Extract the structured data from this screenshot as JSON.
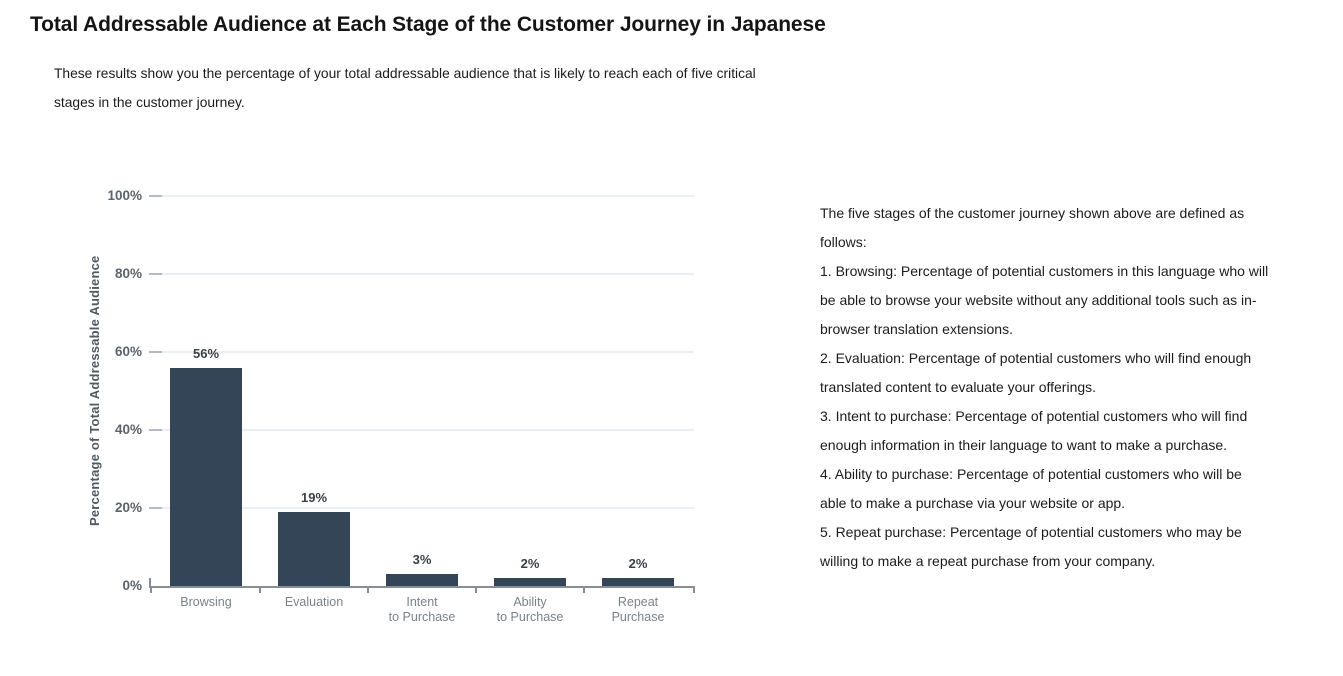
{
  "title": "Total Addressable Audience at Each Stage of the Customer Journey in Japanese",
  "subtitle": {
    "lines": [
      "These results show you the percentage of your total addressable audience that is likely to reach each of five critical",
      "stages in the customer journey."
    ]
  },
  "chart_data": {
    "type": "bar",
    "categories": [
      "Browsing",
      "Evaluation",
      "Intent to Purchase",
      "Ability to Purchase",
      "Repeat Purchase"
    ],
    "category_lines": [
      [
        "Browsing"
      ],
      [
        "Evaluation"
      ],
      [
        "Intent",
        "to Purchase"
      ],
      [
        "Ability",
        "to Purchase"
      ],
      [
        "Repeat",
        "Purchase"
      ]
    ],
    "values": [
      56,
      19,
      3,
      2,
      2
    ],
    "value_labels": [
      "56%",
      "19%",
      "3%",
      "2%",
      "2%"
    ],
    "title": "",
    "xlabel": "",
    "ylabel": "Percentage of Total Addressable Audience",
    "ylim": [
      0,
      100
    ],
    "yticks": [
      "100%",
      "80%",
      "60%",
      "40%",
      "20%",
      "0%"
    ],
    "grid": "horizontal-only",
    "legend": "none",
    "bar_color": "#344558",
    "gridline_color": "#EAEEF5",
    "axis_color": "#878E96"
  },
  "definitions": {
    "lines": [
      "The five stages of the customer journey shown above are defined as",
      "follows:",
      "1. Browsing: Percentage of potential customers in this language who will",
      "be able to browse your website without any additional tools such as in-",
      "browser translation extensions.",
      "2. Evaluation: Percentage of potential customers who will find enough",
      "translated content to evaluate your offerings.",
      "3. Intent to purchase: Percentage of potential customers who will find",
      "enough information in their language to want to make a purchase.",
      "4. Ability to purchase: Percentage of potential customers who will be",
      "able to make a purchase via your website or app.",
      "5. Repeat purchase: Percentage of potential customers who may be",
      "willing to make a repeat purchase from your company."
    ]
  }
}
